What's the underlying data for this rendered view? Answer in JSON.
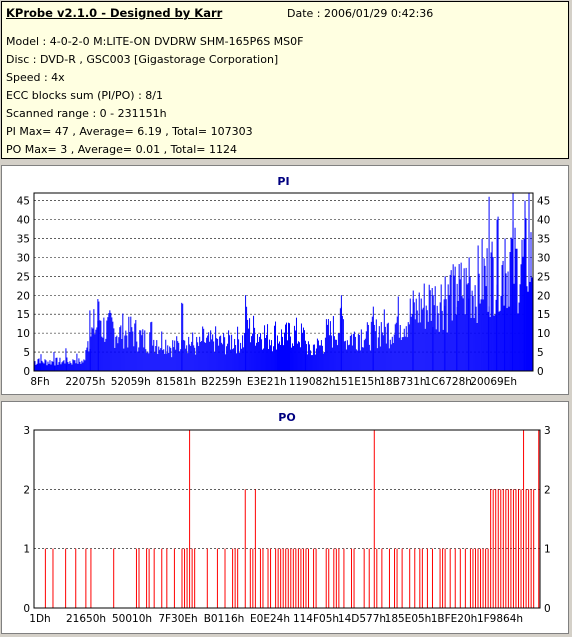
{
  "info": {
    "title": "KProbe v2.1.0 - Designed by Karr",
    "date": "Date : 2006/01/29 0:42:36",
    "lines": [
      "Model : 4-0-2-0 M:LITE-ON DVDRW SHM-165P6S MS0F",
      "Disc : DVD-R , GSC003 [Gigastorage Corporation]",
      "Speed : 4x",
      "ECC blocks sum (PI/PO) : 8/1",
      "Scanned range : 0 - 231151h",
      "PI Max= 47 , Average= 6.19 , Total= 107303",
      "PO Max= 3 , Average= 0.01 , Total= 1124"
    ]
  },
  "colors": {
    "pi": "#0000ff",
    "po": "#ff0000",
    "title": "#000080",
    "info_bg": "#ffffe1"
  },
  "chart_data": [
    {
      "type": "area",
      "title": "PI",
      "ylim": [
        0,
        47
      ],
      "yticks": [
        0,
        5,
        10,
        15,
        20,
        25,
        30,
        35,
        40,
        45
      ],
      "xtick_labels": [
        "8Fh",
        "22075h",
        "52059h",
        "81581h",
        "B2259h",
        "E3E21h",
        "119082h",
        "151E15h",
        "18B731h",
        "1C6728h",
        "20069Eh"
      ],
      "grid": true,
      "profile": [
        3,
        4,
        3,
        3,
        3,
        3,
        3,
        3,
        3,
        3,
        4,
        3,
        3,
        10,
        12,
        14,
        17,
        14,
        13,
        14,
        13,
        12,
        13,
        12,
        13,
        12,
        11,
        10,
        10,
        12,
        10,
        9,
        10,
        9,
        8,
        8,
        8,
        16,
        10,
        9,
        8,
        8,
        10,
        9,
        9,
        10,
        9,
        9,
        9,
        10,
        10,
        10,
        10,
        15,
        13,
        13,
        12,
        12,
        11,
        11,
        12,
        11,
        11,
        11,
        12,
        12,
        11,
        11,
        8,
        6,
        8,
        8,
        9,
        12,
        12,
        13,
        14,
        16,
        10,
        11,
        11,
        12,
        12,
        11,
        12,
        12,
        13,
        14,
        13,
        13,
        15,
        17,
        16,
        17,
        18,
        19,
        20,
        21,
        21,
        22,
        22,
        23,
        23,
        22,
        26,
        24,
        25,
        26,
        26,
        27,
        27,
        28,
        30,
        30,
        31,
        32,
        34,
        32,
        32,
        36,
        34,
        33,
        34,
        36,
        35
      ],
      "spikes": [
        [
          5,
          5
        ],
        [
          8,
          6
        ],
        [
          14,
          16
        ],
        [
          16,
          19
        ],
        [
          37,
          18
        ],
        [
          53,
          20
        ],
        [
          68,
          8
        ],
        [
          77,
          20
        ],
        [
          85,
          17
        ],
        [
          95,
          19
        ],
        [
          100,
          20
        ],
        [
          103,
          25
        ],
        [
          106,
          23
        ],
        [
          109,
          30
        ],
        [
          114,
          46
        ],
        [
          116,
          40
        ],
        [
          118,
          35
        ],
        [
          120,
          47
        ],
        [
          123,
          45
        ],
        [
          124,
          47
        ]
      ]
    },
    {
      "type": "bar",
      "title": "PO",
      "ylim": [
        0,
        3
      ],
      "yticks": [
        0,
        1,
        2,
        3
      ],
      "xtick_labels": [
        "1Dh",
        "21650h",
        "50010h",
        "7F30Eh",
        "B0116h",
        "E0E24h",
        "114F05h",
        "14D577h",
        "185E05h",
        "1BFE20h",
        "1F9864h"
      ],
      "grid": true,
      "bins": 200,
      "counts_of_3": [
        61,
        134,
        193,
        199
      ],
      "counts_of_2": [
        83,
        87,
        180,
        181,
        182,
        183,
        184,
        185,
        186,
        187,
        188,
        189,
        190,
        191,
        192,
        194,
        195,
        196,
        197
      ],
      "counts_of_1": [
        4,
        7,
        12,
        16,
        20,
        22,
        31,
        40,
        41,
        44,
        45,
        47,
        50,
        52,
        55,
        58,
        59,
        60,
        62,
        63,
        68,
        72,
        75,
        78,
        79,
        80,
        85,
        86,
        89,
        90,
        92,
        93,
        95,
        96,
        97,
        98,
        99,
        100,
        101,
        102,
        103,
        104,
        105,
        106,
        107,
        108,
        110,
        111,
        115,
        116,
        118,
        119,
        120,
        122,
        125,
        126,
        130,
        132,
        135,
        137,
        140,
        142,
        143,
        145,
        148,
        150,
        152,
        153,
        155,
        157,
        160,
        161,
        162,
        164,
        166,
        168,
        170,
        172,
        173,
        174,
        175,
        176,
        177,
        178,
        179
      ]
    }
  ]
}
